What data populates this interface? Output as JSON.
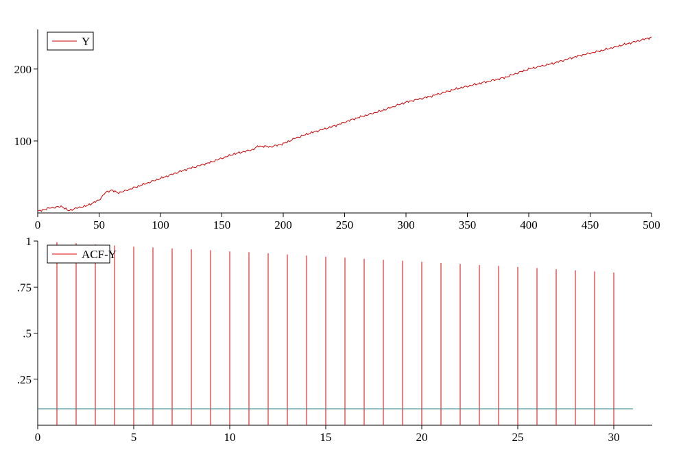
{
  "chart_data": [
    {
      "type": "line",
      "legend": [
        "Y"
      ],
      "legend_position": "top-left",
      "grid": false,
      "xlim": [
        0,
        500
      ],
      "ylim": [
        0,
        255
      ],
      "x_ticks": [
        0,
        50,
        100,
        150,
        200,
        250,
        300,
        350,
        400,
        450,
        500
      ],
      "x_tick_labels": [
        "0",
        "50",
        "100",
        "150",
        "200",
        "250",
        "300",
        "350",
        "400",
        "450",
        "500"
      ],
      "y_ticks": [
        100,
        200
      ],
      "y_tick_labels": [
        "100",
        "200"
      ],
      "series": [
        {
          "name": "Y",
          "color": "#cc0000",
          "x": [
            0,
            10,
            20,
            25,
            30,
            40,
            50,
            55,
            60,
            65,
            70,
            80,
            100,
            120,
            140,
            160,
            175,
            180,
            190,
            200,
            210,
            220,
            240,
            260,
            280,
            300,
            320,
            340,
            360,
            380,
            400,
            420,
            440,
            460,
            480,
            500
          ],
          "y": [
            2,
            7,
            9,
            3,
            6,
            10,
            18,
            28,
            32,
            28,
            30,
            36,
            48,
            60,
            70,
            82,
            88,
            93,
            92,
            96,
            104,
            110,
            120,
            132,
            142,
            154,
            162,
            172,
            180,
            188,
            200,
            208,
            218,
            226,
            235,
            244
          ]
        }
      ]
    },
    {
      "type": "bar",
      "legend": [
        "ACF-Y"
      ],
      "legend_position": "top-left",
      "grid": false,
      "xlim": [
        0,
        32
      ],
      "ylim": [
        0,
        1
      ],
      "x_ticks": [
        0,
        5,
        10,
        15,
        20,
        25,
        30
      ],
      "x_tick_labels": [
        "0",
        "5",
        "10",
        "15",
        "20",
        "25",
        "30"
      ],
      "y_ticks": [
        0.25,
        0.5,
        0.75,
        1
      ],
      "y_tick_labels": [
        ".25",
        ".5",
        ".75",
        "1"
      ],
      "series": [
        {
          "name": "ACF-Y",
          "color": "#dd0000",
          "x": [
            1,
            2,
            3,
            4,
            5,
            6,
            7,
            8,
            9,
            10,
            11,
            12,
            13,
            14,
            15,
            16,
            17,
            18,
            19,
            20,
            21,
            22,
            23,
            24,
            25,
            26,
            27,
            28,
            29,
            30
          ],
          "values": [
            0.994,
            0.988,
            0.982,
            0.976,
            0.97,
            0.965,
            0.96,
            0.955,
            0.95,
            0.944,
            0.939,
            0.933,
            0.927,
            0.921,
            0.915,
            0.91,
            0.904,
            0.898,
            0.893,
            0.887,
            0.881,
            0.876,
            0.87,
            0.865,
            0.859,
            0.853,
            0.847,
            0.841,
            0.835,
            0.829
          ]
        }
      ],
      "reference_line": {
        "value": 0.089,
        "x_range": [
          0,
          31
        ],
        "color": "#2a7e8c"
      }
    }
  ]
}
